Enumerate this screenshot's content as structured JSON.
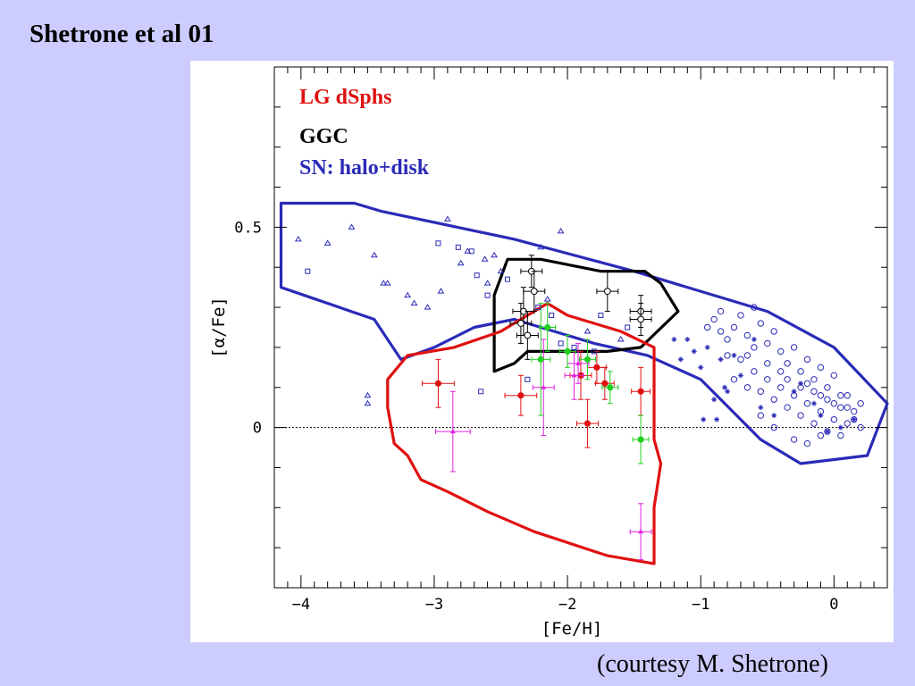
{
  "slide": {
    "title": "Shetrone et al 01",
    "credit": "(courtesy M. Shetrone)"
  },
  "colors": {
    "background": "#ccccff",
    "dsph": "#e01010",
    "ggc": "#000000",
    "sn": "#2a2ab8",
    "magenta": "#e020e0",
    "green": "#20d020"
  },
  "chart_data": {
    "type": "scatter",
    "xlabel": "[Fe/H]",
    "ylabel": "[α/Fe]",
    "xlim": [
      -4.2,
      0.4
    ],
    "ylim": [
      -0.4,
      0.9
    ],
    "xticks": [
      {
        "v": -4,
        "label": "−4"
      },
      {
        "v": -3,
        "label": "−3"
      },
      {
        "v": -2,
        "label": "−2"
      },
      {
        "v": -1,
        "label": "−1"
      },
      {
        "v": 0,
        "label": "0"
      }
    ],
    "yticks": [
      {
        "v": 0,
        "label": "0"
      },
      {
        "v": 0.5,
        "label": "0.5"
      }
    ],
    "zero_line": true,
    "legend": [
      {
        "label": "LG dSphs",
        "color": "#e01010"
      },
      {
        "label": "GGC",
        "color": "#000000"
      },
      {
        "label": "SN: halo+disk",
        "color": "#2a2ab8"
      }
    ],
    "regions": [
      {
        "name": "SN: halo+disk",
        "color": "#2a2ab8",
        "points": [
          [
            -4.15,
            0.56
          ],
          [
            -3.6,
            0.56
          ],
          [
            -3.4,
            0.54
          ],
          [
            -2.4,
            0.47
          ],
          [
            -1.5,
            0.39
          ],
          [
            -1.2,
            0.36
          ],
          [
            -0.5,
            0.29
          ],
          [
            0.0,
            0.2
          ],
          [
            0.4,
            0.06
          ],
          [
            0.25,
            -0.07
          ],
          [
            -0.25,
            -0.09
          ],
          [
            -0.55,
            -0.03
          ],
          [
            -1.0,
            0.12
          ],
          [
            -1.4,
            0.18
          ],
          [
            -1.8,
            0.21
          ],
          [
            -2.1,
            0.24
          ],
          [
            -2.4,
            0.27
          ],
          [
            -2.7,
            0.25
          ],
          [
            -3.0,
            0.2
          ],
          [
            -3.25,
            0.17
          ],
          [
            -3.45,
            0.27
          ],
          [
            -4.15,
            0.35
          ]
        ]
      },
      {
        "name": "GGC",
        "color": "#000000",
        "points": [
          [
            -2.45,
            0.42
          ],
          [
            -2.2,
            0.42
          ],
          [
            -1.9,
            0.4
          ],
          [
            -1.75,
            0.39
          ],
          [
            -1.42,
            0.39
          ],
          [
            -1.3,
            0.36
          ],
          [
            -1.17,
            0.29
          ],
          [
            -1.45,
            0.2
          ],
          [
            -1.7,
            0.19
          ],
          [
            -1.8,
            0.19
          ],
          [
            -2.05,
            0.19
          ],
          [
            -2.3,
            0.19
          ],
          [
            -2.4,
            0.16
          ],
          [
            -2.55,
            0.14
          ],
          [
            -2.55,
            0.33
          ]
        ]
      },
      {
        "name": "LG dSphs",
        "color": "#e01010",
        "points": [
          [
            -2.15,
            0.31
          ],
          [
            -2.0,
            0.28
          ],
          [
            -1.6,
            0.24
          ],
          [
            -1.35,
            0.2
          ],
          [
            -1.35,
            0.06
          ],
          [
            -1.35,
            -0.03
          ],
          [
            -1.3,
            -0.09
          ],
          [
            -1.35,
            -0.2
          ],
          [
            -1.35,
            -0.34
          ],
          [
            -1.7,
            -0.32
          ],
          [
            -2.25,
            -0.26
          ],
          [
            -2.6,
            -0.21
          ],
          [
            -2.9,
            -0.16
          ],
          [
            -3.1,
            -0.13
          ],
          [
            -3.2,
            -0.07
          ],
          [
            -3.3,
            -0.04
          ],
          [
            -3.35,
            0.05
          ],
          [
            -3.35,
            0.12
          ],
          [
            -3.2,
            0.18
          ],
          [
            -2.85,
            0.2
          ],
          [
            -2.5,
            0.24
          ],
          [
            -2.3,
            0.28
          ]
        ]
      }
    ],
    "series": [
      {
        "name": "",
        "color": "#e01010",
        "marker": "dot",
        "points": [
          {
            "x": -2.97,
            "y": 0.11,
            "ex": 0.12,
            "ey": 0.06
          },
          {
            "x": -2.35,
            "y": 0.08,
            "ex": 0.12,
            "ey": 0.05
          },
          {
            "x": -1.9,
            "y": 0.13,
            "ex": 0.08,
            "ey": 0.06
          },
          {
            "x": -1.85,
            "y": 0.01,
            "ex": 0.08,
            "ey": 0.06
          },
          {
            "x": -1.78,
            "y": 0.15,
            "ex": 0.07,
            "ey": 0.04
          },
          {
            "x": -1.72,
            "y": 0.11,
            "ex": 0.07,
            "ey": 0.04
          },
          {
            "x": -1.45,
            "y": 0.09,
            "ex": 0.07,
            "ey": 0.06
          }
        ]
      },
      {
        "name": "",
        "color": "#e020e0",
        "marker": "triangle",
        "points": [
          {
            "x": -2.86,
            "y": -0.01,
            "ex": 0.13,
            "ey": 0.1
          },
          {
            "x": -2.18,
            "y": 0.1,
            "ex": 0.08,
            "ey": 0.12
          },
          {
            "x": -1.95,
            "y": 0.13,
            "ex": 0.07,
            "ey": 0.06
          },
          {
            "x": -1.92,
            "y": 0.16,
            "ex": 0.08,
            "ey": 0.05
          },
          {
            "x": -1.45,
            "y": -0.26,
            "ex": 0.08,
            "ey": 0.07
          }
        ]
      },
      {
        "name": "",
        "color": "#20d020",
        "marker": "dot",
        "points": [
          {
            "x": -2.15,
            "y": 0.25,
            "ex": 0.06,
            "ey": 0.06
          },
          {
            "x": -2.0,
            "y": 0.19,
            "ex": 0.06,
            "ey": 0.04
          },
          {
            "x": -1.85,
            "y": 0.17,
            "ex": 0.06,
            "ey": 0.05
          },
          {
            "x": -1.68,
            "y": 0.1,
            "ex": 0.06,
            "ey": 0.04
          },
          {
            "x": -1.45,
            "y": -0.03,
            "ex": 0.06,
            "ey": 0.06
          },
          {
            "x": -2.2,
            "y": 0.17,
            "ex": 0.07,
            "ey": 0.14
          }
        ]
      },
      {
        "name": "",
        "color": "#000000",
        "marker": "circle",
        "points": [
          {
            "x": -2.27,
            "y": 0.39,
            "ex": 0.08,
            "ey": 0.04
          },
          {
            "x": -2.25,
            "y": 0.34,
            "ex": 0.08,
            "ey": 0.05
          },
          {
            "x": -2.33,
            "y": 0.29,
            "ex": 0.08,
            "ey": 0.06
          },
          {
            "x": -2.35,
            "y": 0.26,
            "ex": 0.08,
            "ey": 0.05
          },
          {
            "x": -2.3,
            "y": 0.23,
            "ex": 0.08,
            "ey": 0.06
          },
          {
            "x": -1.7,
            "y": 0.34,
            "ex": 0.08,
            "ey": 0.05
          },
          {
            "x": -1.45,
            "y": 0.29,
            "ex": 0.08,
            "ey": 0.04
          },
          {
            "x": -1.45,
            "y": 0.27,
            "ex": 0.08,
            "ey": 0.04
          }
        ]
      },
      {
        "name": "",
        "color": "#2a2ab8",
        "marker": "open-triangle",
        "points": [
          {
            "x": -4.02,
            "y": 0.47
          },
          {
            "x": -3.8,
            "y": 0.46
          },
          {
            "x": -3.62,
            "y": 0.5
          },
          {
            "x": -3.45,
            "y": 0.43
          },
          {
            "x": -3.38,
            "y": 0.36
          },
          {
            "x": -3.35,
            "y": 0.36
          },
          {
            "x": -3.2,
            "y": 0.33
          },
          {
            "x": -3.15,
            "y": 0.31
          },
          {
            "x": -2.9,
            "y": 0.52
          },
          {
            "x": -2.75,
            "y": 0.44
          },
          {
            "x": -2.62,
            "y": 0.42
          },
          {
            "x": -2.55,
            "y": 0.43
          },
          {
            "x": -2.5,
            "y": 0.39
          },
          {
            "x": -2.2,
            "y": 0.45
          },
          {
            "x": -2.05,
            "y": 0.49
          },
          {
            "x": -2.8,
            "y": 0.41
          },
          {
            "x": -2.95,
            "y": 0.34
          },
          {
            "x": -3.05,
            "y": 0.3
          },
          {
            "x": -3.5,
            "y": 0.08
          },
          {
            "x": -3.5,
            "y": 0.06
          },
          {
            "x": -2.6,
            "y": 0.36
          },
          {
            "x": -2.15,
            "y": 0.32
          },
          {
            "x": -1.85,
            "y": 0.24
          },
          {
            "x": -1.6,
            "y": 0.22
          }
        ]
      },
      {
        "name": "",
        "color": "#2a2ab8",
        "marker": "open-square",
        "points": [
          {
            "x": -3.95,
            "y": 0.39
          },
          {
            "x": -2.97,
            "y": 0.46
          },
          {
            "x": -2.82,
            "y": 0.45
          },
          {
            "x": -2.72,
            "y": 0.44
          },
          {
            "x": -2.68,
            "y": 0.38
          },
          {
            "x": -2.6,
            "y": 0.33
          },
          {
            "x": -2.45,
            "y": 0.37
          },
          {
            "x": -2.22,
            "y": 0.3
          },
          {
            "x": -2.12,
            "y": 0.28
          },
          {
            "x": -2.05,
            "y": 0.21
          },
          {
            "x": -1.95,
            "y": 0.2
          },
          {
            "x": -1.8,
            "y": 0.19
          },
          {
            "x": -2.65,
            "y": 0.09
          },
          {
            "x": -2.3,
            "y": 0.12
          },
          {
            "x": -1.75,
            "y": 0.28
          },
          {
            "x": -1.55,
            "y": 0.25
          }
        ]
      },
      {
        "name": "",
        "color": "#2a2ab8",
        "marker": "star",
        "points": [
          {
            "x": -1.2,
            "y": 0.22
          },
          {
            "x": -1.1,
            "y": 0.22
          },
          {
            "x": -1.15,
            "y": 0.17
          },
          {
            "x": -1.05,
            "y": 0.19
          },
          {
            "x": -0.95,
            "y": 0.2
          },
          {
            "x": -0.85,
            "y": 0.17
          },
          {
            "x": -0.82,
            "y": 0.1
          },
          {
            "x": -0.9,
            "y": 0.07
          },
          {
            "x": -0.98,
            "y": 0.02
          },
          {
            "x": -0.88,
            "y": 0.02
          },
          {
            "x": -0.7,
            "y": 0.13
          },
          {
            "x": -0.75,
            "y": 0.18
          },
          {
            "x": -0.55,
            "y": 0.05
          },
          {
            "x": -0.45,
            "y": 0.03
          },
          {
            "x": -0.3,
            "y": 0.09
          },
          {
            "x": -0.25,
            "y": 0.11
          },
          {
            "x": -0.15,
            "y": 0.06
          },
          {
            "x": -0.1,
            "y": 0.03
          },
          {
            "x": -0.05,
            "y": -0.01
          },
          {
            "x": 0.05,
            "y": 0.0
          },
          {
            "x": 0.15,
            "y": 0.02
          },
          {
            "x": -0.8,
            "y": 0.09
          },
          {
            "x": -1.0,
            "y": 0.15
          },
          {
            "x": -0.6,
            "y": 0.22
          }
        ]
      },
      {
        "name": "",
        "color": "#2a2ab8",
        "marker": "open-circle",
        "points": [
          {
            "x": -0.9,
            "y": 0.27
          },
          {
            "x": -0.85,
            "y": 0.24
          },
          {
            "x": -0.8,
            "y": 0.22
          },
          {
            "x": -0.75,
            "y": 0.25
          },
          {
            "x": -0.7,
            "y": 0.28
          },
          {
            "x": -0.65,
            "y": 0.23
          },
          {
            "x": -0.6,
            "y": 0.2
          },
          {
            "x": -0.55,
            "y": 0.26
          },
          {
            "x": -0.5,
            "y": 0.21
          },
          {
            "x": -0.45,
            "y": 0.24
          },
          {
            "x": -0.4,
            "y": 0.19
          },
          {
            "x": -0.35,
            "y": 0.16
          },
          {
            "x": -0.3,
            "y": 0.2
          },
          {
            "x": -0.25,
            "y": 0.14
          },
          {
            "x": -0.2,
            "y": 0.17
          },
          {
            "x": -0.15,
            "y": 0.12
          },
          {
            "x": -0.1,
            "y": 0.15
          },
          {
            "x": -0.05,
            "y": 0.1
          },
          {
            "x": 0.0,
            "y": 0.13
          },
          {
            "x": 0.05,
            "y": 0.08
          },
          {
            "x": 0.1,
            "y": 0.05
          },
          {
            "x": 0.15,
            "y": 0.02
          },
          {
            "x": -0.75,
            "y": 0.12
          },
          {
            "x": -0.7,
            "y": 0.17
          },
          {
            "x": -0.65,
            "y": 0.1
          },
          {
            "x": -0.6,
            "y": 0.14
          },
          {
            "x": -0.55,
            "y": 0.09
          },
          {
            "x": -0.5,
            "y": 0.12
          },
          {
            "x": -0.45,
            "y": 0.07
          },
          {
            "x": -0.4,
            "y": 0.1
          },
          {
            "x": -0.35,
            "y": 0.05
          },
          {
            "x": -0.3,
            "y": 0.08
          },
          {
            "x": -0.25,
            "y": 0.03
          },
          {
            "x": -0.2,
            "y": 0.06
          },
          {
            "x": -0.15,
            "y": 0.01
          },
          {
            "x": -0.1,
            "y": 0.04
          },
          {
            "x": -0.05,
            "y": -0.01
          },
          {
            "x": 0.0,
            "y": 0.02
          },
          {
            "x": 0.05,
            "y": -0.02
          },
          {
            "x": 0.1,
            "y": 0.01
          },
          {
            "x": 0.15,
            "y": 0.04
          },
          {
            "x": 0.2,
            "y": 0.06
          },
          {
            "x": -0.3,
            "y": -0.03
          },
          {
            "x": -0.2,
            "y": -0.04
          },
          {
            "x": -0.1,
            "y": -0.02
          },
          {
            "x": -0.45,
            "y": 0.0
          },
          {
            "x": -0.55,
            "y": 0.03
          },
          {
            "x": -0.35,
            "y": 0.12
          },
          {
            "x": -0.25,
            "y": 0.1
          },
          {
            "x": -0.15,
            "y": 0.09
          },
          {
            "x": -0.05,
            "y": 0.07
          },
          {
            "x": 0.05,
            "y": 0.05
          },
          {
            "x": -0.65,
            "y": 0.18
          },
          {
            "x": -0.5,
            "y": 0.16
          },
          {
            "x": -0.4,
            "y": 0.14
          },
          {
            "x": -0.2,
            "y": 0.11
          },
          {
            "x": -0.1,
            "y": 0.08
          },
          {
            "x": 0.0,
            "y": 0.06
          },
          {
            "x": 0.1,
            "y": 0.08
          },
          {
            "x": 0.2,
            "y": 0.0
          },
          {
            "x": -0.6,
            "y": 0.3
          },
          {
            "x": -0.8,
            "y": 0.18
          },
          {
            "x": -0.95,
            "y": 0.25
          },
          {
            "x": -0.85,
            "y": 0.29
          }
        ]
      }
    ]
  }
}
